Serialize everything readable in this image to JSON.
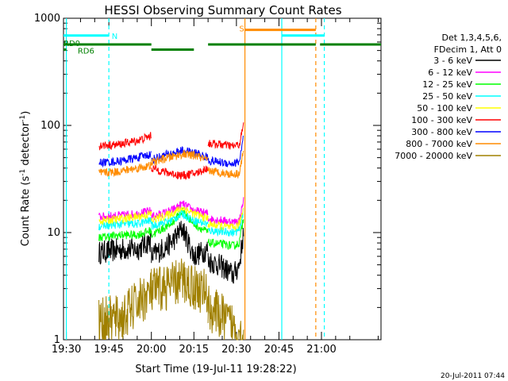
{
  "chart_data": {
    "type": "line",
    "title": "HESSI Observing Summary Count Rates",
    "xlabel": "Start Time (19-Jul-11 19:28:22)",
    "ylabel_main": "Count Rate (s",
    "ylabel_sup1": "-1",
    "ylabel_mid": " detector",
    "ylabel_sup2": "-1",
    "ylabel_end": ")",
    "y_scale": "log",
    "xlim_minutes": [
      -1,
      111
    ],
    "ylim": [
      1,
      1000
    ],
    "x_ticks": [
      {
        "label": "19:30",
        "t": 0
      },
      {
        "label": "19:45",
        "t": 15
      },
      {
        "label": "20:00",
        "t": 30
      },
      {
        "label": "20:15",
        "t": 45
      },
      {
        "label": "20:30",
        "t": 60
      },
      {
        "label": "20:45",
        "t": 75
      },
      {
        "label": "21:00",
        "t": 90
      }
    ],
    "y_ticks": [
      {
        "label": "1",
        "v": 1
      },
      {
        "label": "10",
        "v": 10
      },
      {
        "label": "100",
        "v": 100
      },
      {
        "label": "1000",
        "v": 1000
      }
    ],
    "legend_header": [
      "Det 1,3,4,5,6,",
      "FDecim 1, Att 0"
    ],
    "series": [
      {
        "name": "3 - 6 keV",
        "color": "#000000",
        "segments": [
          [
            [
              11.5,
              6.5
            ],
            [
              20,
              7
            ],
            [
              25,
              7
            ],
            [
              30,
              8.5
            ]
          ],
          [
            [
              30,
              6
            ],
            [
              37,
              8
            ],
            [
              41,
              11
            ],
            [
              45,
              6
            ],
            [
              50,
              7
            ]
          ],
          [
            [
              50,
              5.5
            ],
            [
              55,
              4.8
            ],
            [
              59,
              4
            ],
            [
              61,
              5
            ],
            [
              62.5,
              10
            ]
          ]
        ]
      },
      {
        "name": "6 - 12 keV",
        "color": "#ff00ff",
        "segments": [
          [
            [
              11.5,
              14
            ],
            [
              20,
              14.5
            ],
            [
              25,
              15
            ],
            [
              30,
              16
            ]
          ],
          [
            [
              30,
              14
            ],
            [
              37,
              16
            ],
            [
              41,
              18.5
            ],
            [
              45,
              16
            ],
            [
              50,
              15
            ]
          ],
          [
            [
              50,
              13.5
            ],
            [
              55,
              13
            ],
            [
              59,
              12.5
            ],
            [
              61,
              13
            ],
            [
              62.5,
              20
            ]
          ]
        ]
      },
      {
        "name": "12 - 25 keV",
        "color": "#00ff00",
        "segments": [
          [
            [
              11.5,
              9
            ],
            [
              20,
              9.5
            ],
            [
              25,
              9.5
            ],
            [
              30,
              10.5
            ]
          ],
          [
            [
              30,
              9.5
            ],
            [
              37,
              12
            ],
            [
              41,
              16
            ],
            [
              45,
              12
            ],
            [
              50,
              10
            ]
          ],
          [
            [
              50,
              8
            ],
            [
              55,
              7.8
            ],
            [
              59,
              7.5
            ],
            [
              61,
              8
            ],
            [
              62.5,
              14
            ]
          ]
        ]
      },
      {
        "name": "25 - 50 keV",
        "color": "#00ffff",
        "segments": [
          [
            [
              11.5,
              11.5
            ],
            [
              20,
              12
            ],
            [
              25,
              12
            ],
            [
              30,
              13
            ]
          ],
          [
            [
              30,
              11.5
            ],
            [
              37,
              13
            ],
            [
              41,
              15
            ],
            [
              45,
              13
            ],
            [
              50,
              12
            ]
          ],
          [
            [
              50,
              10.5
            ],
            [
              55,
              10.2
            ],
            [
              59,
              10
            ],
            [
              61,
              10.5
            ],
            [
              62.5,
              16
            ]
          ]
        ]
      },
      {
        "name": "50 - 100 keV",
        "color": "#ffff00",
        "segments": [
          [
            [
              11.5,
              12.8
            ],
            [
              20,
              13.5
            ],
            [
              25,
              14
            ],
            [
              30,
              15
            ]
          ],
          [
            [
              30,
              13
            ],
            [
              37,
              15
            ],
            [
              41,
              17
            ],
            [
              45,
              15
            ],
            [
              50,
              13.5
            ]
          ],
          [
            [
              50,
              12
            ],
            [
              55,
              11.5
            ],
            [
              59,
              11
            ],
            [
              61,
              12
            ],
            [
              62.5,
              17
            ]
          ]
        ]
      },
      {
        "name": "100 - 300 keV",
        "color": "#ff0000",
        "segments": [
          [
            [
              11.5,
              65
            ],
            [
              18,
              66
            ],
            [
              25,
              72
            ],
            [
              30,
              80
            ]
          ],
          [
            [
              30,
              40
            ],
            [
              36,
              36
            ],
            [
              41,
              34
            ],
            [
              46,
              36
            ],
            [
              50,
              40
            ]
          ],
          [
            [
              50,
              68
            ],
            [
              55,
              66
            ],
            [
              59,
              64
            ],
            [
              61,
              66
            ],
            [
              62.5,
              100
            ]
          ]
        ]
      },
      {
        "name": "300 - 800 keV",
        "color": "#0000ff",
        "segments": [
          [
            [
              11.5,
              45
            ],
            [
              18,
              46
            ],
            [
              25,
              50
            ],
            [
              30,
              54
            ]
          ],
          [
            [
              30,
              48
            ],
            [
              36,
              54
            ],
            [
              41,
              58
            ],
            [
              46,
              55
            ],
            [
              50,
              50
            ]
          ],
          [
            [
              50,
              47
            ],
            [
              55,
              45
            ],
            [
              59,
              44
            ],
            [
              61,
              46
            ],
            [
              62.5,
              78
            ]
          ]
        ]
      },
      {
        "name": "800 - 7000 keV",
        "color": "#ff8c00",
        "segments": [
          [
            [
              11.5,
              36
            ],
            [
              18,
              37
            ],
            [
              25,
              40
            ],
            [
              30,
              42
            ]
          ],
          [
            [
              30,
              45
            ],
            [
              36,
              50
            ],
            [
              41,
              54
            ],
            [
              46,
              52
            ],
            [
              50,
              46
            ]
          ],
          [
            [
              50,
              38
            ],
            [
              55,
              36
            ],
            [
              59,
              35
            ],
            [
              61,
              36
            ],
            [
              62.5,
              58
            ]
          ]
        ]
      },
      {
        "name": "7000 - 20000 keV",
        "color": "#a08000",
        "segments": [
          [
            [
              11.5,
              1.5
            ],
            [
              20,
              1.6
            ],
            [
              25,
              2.2
            ],
            [
              30,
              2.8
            ]
          ],
          [
            [
              30,
              2.8
            ],
            [
              37,
              3.2
            ],
            [
              41,
              3.6
            ],
            [
              45,
              3.1
            ],
            [
              50,
              2.7
            ]
          ],
          [
            [
              50,
              2
            ],
            [
              55,
              1.6
            ],
            [
              59,
              1.3
            ],
            [
              61,
              1.2
            ],
            [
              62.5,
              1
            ]
          ]
        ]
      }
    ],
    "vlines": [
      {
        "t": 0,
        "color": "#00ffff",
        "style": "solid"
      },
      {
        "t": 15,
        "color": "#00ffff",
        "style": "dashed"
      },
      {
        "t": 63,
        "color": "#ff8c00",
        "style": "solid"
      },
      {
        "t": 76,
        "color": "#00ffff",
        "style": "solid"
      },
      {
        "t": 88,
        "color": "#ff8c00",
        "style": "dashed"
      },
      {
        "t": 91,
        "color": "#00ffff",
        "style": "dashed"
      }
    ],
    "annotations": [
      {
        "label": "N",
        "t": 16,
        "v": 690,
        "color": "#00ffff"
      },
      {
        "label": "RD0",
        "t": -1,
        "v": 590,
        "color": "#008000"
      },
      {
        "label": "RD6",
        "t": 4,
        "v": 500,
        "color": "#008000"
      },
      {
        "label": "S",
        "t": 61,
        "v": 810,
        "color": "#ff8c00"
      }
    ],
    "status_bars": [
      {
        "name": "N",
        "color": "#00ffff",
        "v": 690,
        "ranges": [
          [
            -1,
            15
          ],
          [
            76,
            91
          ]
        ]
      },
      {
        "name": "S",
        "color": "#ff8c00",
        "v": 780,
        "ranges": [
          [
            63,
            88
          ]
        ]
      },
      {
        "name": "RD0",
        "color": "#008000",
        "v": 570,
        "ranges": [
          [
            -1,
            30
          ],
          [
            50,
            88
          ],
          [
            89.5,
            111
          ]
        ]
      },
      {
        "name": "RD6",
        "color": "#008000",
        "v": 510,
        "ranges": [
          [
            -1,
            0
          ],
          [
            30,
            45
          ]
        ]
      }
    ]
  },
  "footer_timestamp": "20-Jul-2011 07:44"
}
